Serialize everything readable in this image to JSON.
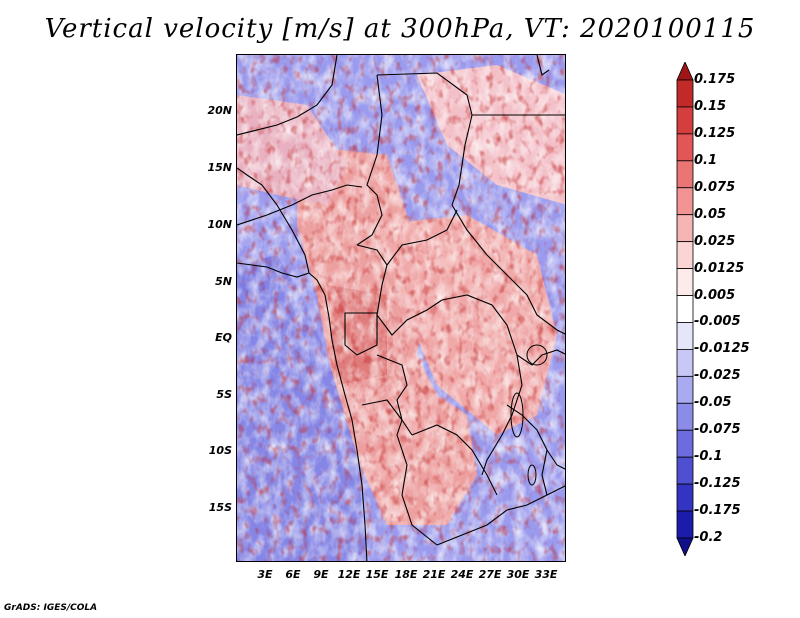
{
  "title": "Vertical velocity [m/s] at 300hPa, VT: 2020100115",
  "lat_labels": [
    "20N",
    "15N",
    "10N",
    "5N",
    "EQ",
    "5S",
    "10S",
    "15S"
  ],
  "lon_labels": [
    "3E",
    "6E",
    "9E",
    "12E",
    "15E",
    "18E",
    "21E",
    "24E",
    "27E",
    "30E",
    "33E"
  ],
  "colorbar": {
    "labels": [
      "0.175",
      "0.15",
      "0.125",
      "0.1",
      "0.075",
      "0.05",
      "0.025",
      "0.0125",
      "0.005",
      "-0.005",
      "-0.0125",
      "-0.025",
      "-0.05",
      "-0.075",
      "-0.1",
      "-0.125",
      "-0.175",
      "-0.2"
    ],
    "colors": [
      "#a01616",
      "#c22a2a",
      "#d53e3e",
      "#e25656",
      "#eb7575",
      "#f29494",
      "#f7b4b4",
      "#fbd4d4",
      "#fdeaea",
      "#ffffff",
      "#e6e6fb",
      "#c8c8f6",
      "#aaaaf0",
      "#8b8be8",
      "#6c6cdf",
      "#4f4fd2",
      "#3434c2",
      "#1c1caa",
      "#0f0f8a"
    ]
  },
  "footer": "GrADS: IGES/COLA"
}
